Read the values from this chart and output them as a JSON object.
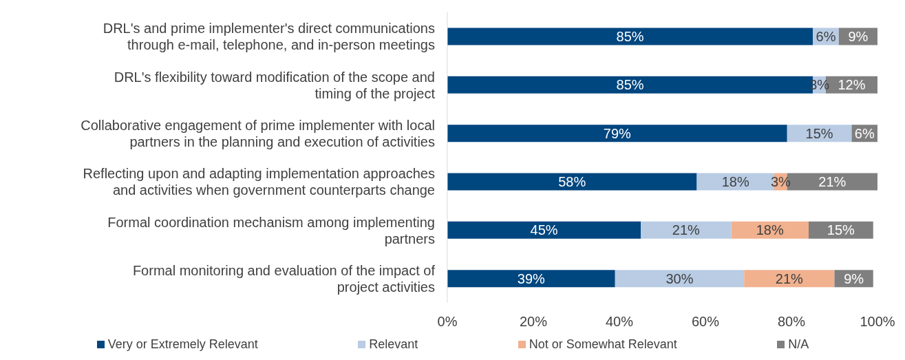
{
  "chart_data": {
    "type": "bar",
    "orientation": "horizontal",
    "stacked": true,
    "legend": "bottom",
    "grid": false,
    "categories": [
      "DRL's and prime implementer's direct communications through e-mail, telephone, and in-person meetings",
      "DRL's flexibility toward modification of the scope and timing of the project",
      "Collaborative engagement of prime implementer with local partners in the planning and execution of activities",
      "Reflecting upon and adapting implementation approaches and activities when government counterparts change",
      "Formal coordination mechanism among implementing partners",
      "Formal monitoring and evaluation of the impact of project activities"
    ],
    "series": [
      {
        "name": "Very or Extremely Relevant",
        "color": "#00467f",
        "values": [
          85,
          85,
          79,
          58,
          45,
          39
        ],
        "value_labels": [
          "85%",
          "85%",
          "79%",
          "58%",
          "45%",
          "39%"
        ]
      },
      {
        "name": "Relevant",
        "color": "#b9cce4",
        "values": [
          6,
          3,
          15,
          18,
          21,
          30
        ],
        "value_labels": [
          "6%",
          "3%",
          "15%",
          "18%",
          "21%",
          "30%"
        ]
      },
      {
        "name": "Not or Somewhat Relevant",
        "color": "#f1b18e",
        "values": [
          null,
          null,
          null,
          3,
          18,
          21
        ],
        "value_labels": [
          null,
          null,
          null,
          "3%",
          "18%",
          "21%"
        ]
      },
      {
        "name": "N/A",
        "color": "#7f7f7f",
        "values": [
          9,
          12,
          6,
          21,
          15,
          9
        ],
        "value_labels": [
          "9%",
          "12%",
          "6%",
          "21%",
          "15%",
          "9%"
        ]
      }
    ],
    "xlim": [
      0,
      100
    ],
    "xticks": [
      {
        "value": 0,
        "label": "0%"
      },
      {
        "value": 20,
        "label": "20%"
      },
      {
        "value": 40,
        "label": "40%"
      },
      {
        "value": 60,
        "label": "60%"
      },
      {
        "value": 80,
        "label": "80%"
      },
      {
        "value": 100,
        "label": "100%"
      }
    ]
  }
}
